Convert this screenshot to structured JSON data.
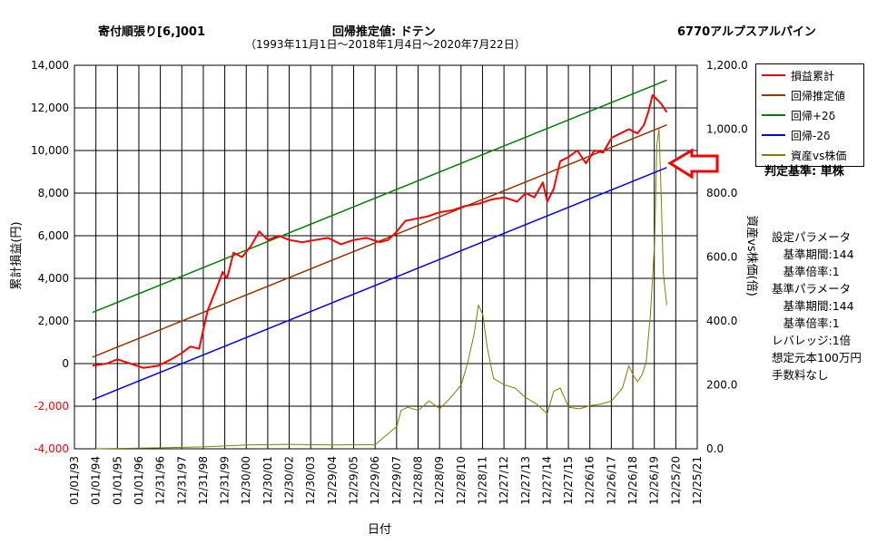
{
  "header": {
    "left_title": "寄付順張り[6,]001",
    "center_title": "回帰推定値: ドテン",
    "center_subtitle": "（1993年11月1日～2018年1月4日～2020年7月22日）",
    "right_title": "6770アルプスアルパイン"
  },
  "judge": "判定基準: 単株",
  "params": [
    "設定パラメータ",
    "　基準期間:144",
    "　基準倍率:1",
    "基準パラメータ",
    "　基準期間:144",
    "　基準倍率:1",
    "レバレッジ:1倍",
    "想定元本100万円",
    "手数料なし"
  ],
  "colors": {
    "cum": "#ff0000",
    "reg": "#993300",
    "plus": "#008000",
    "minus": "#0000ff",
    "ratio": "#808000",
    "arrow": "#ff0000"
  },
  "chart_data": {
    "type": "line",
    "xlabel": "日付",
    "ylabel_left": "累計損益(円)",
    "ylabel_right": "資産vs株価(倍)",
    "ylim_left": [
      -4000,
      14000
    ],
    "ylim_right": [
      0,
      1200
    ],
    "yticks_left": [
      "-4,000",
      "-2,000",
      "0",
      "2,000",
      "4,000",
      "6,000",
      "8,000",
      "10,000",
      "12,000",
      "14,000"
    ],
    "yticks_right": [
      "0.0",
      "200.0",
      "400.0",
      "600.0",
      "800.0",
      "1,000.0",
      "1,200.0"
    ],
    "xticks": [
      "01/01/93",
      "01/01/94",
      "01/01/95",
      "01/01/96",
      "12/31/96",
      "12/31/97",
      "12/31/98",
      "12/31/99",
      "12/30/00",
      "12/30/01",
      "12/30/02",
      "12/30/03",
      "12/29/04",
      "12/29/05",
      "12/29/06",
      "12/29/07",
      "12/28/08",
      "12/28/09",
      "12/28/10",
      "12/28/11",
      "12/27/12",
      "12/27/13",
      "12/27/14",
      "12/27/15",
      "12/26/16",
      "12/26/17",
      "12/26/18",
      "12/26/19",
      "12/25/20",
      "12/25/21"
    ],
    "grid": true,
    "legend_position": "top-right",
    "series": [
      {
        "name": "損益累計",
        "axis": "left",
        "color": "#ff0000",
        "x": [
          1993.84,
          1994.5,
          1995.0,
          1995.6,
          1996.2,
          1996.9,
          1997.5,
          1998.0,
          1998.4,
          1998.8,
          1999.2,
          1999.6,
          1999.9,
          2000.1,
          2000.4,
          2000.8,
          2001.2,
          2001.6,
          2002.0,
          2002.5,
          2003.0,
          2003.6,
          2004.2,
          2004.8,
          2005.4,
          2006.0,
          2006.6,
          2007.2,
          2007.6,
          2008.0,
          2008.4,
          2008.9,
          2009.4,
          2010.0,
          2010.6,
          2011.2,
          2011.8,
          2012.4,
          2013.0,
          2013.6,
          2014.0,
          2014.4,
          2014.8,
          2015.0,
          2015.3,
          2015.6,
          2016.0,
          2016.4,
          2016.8,
          2017.2,
          2017.6,
          2018.0,
          2018.4,
          2018.8,
          2019.2,
          2019.5,
          2019.7,
          2019.9,
          2020.1,
          2020.3,
          2020.56
        ],
        "y": [
          -100,
          0,
          200,
          0,
          -200,
          -100,
          200,
          500,
          800,
          700,
          2500,
          3500,
          4300,
          4000,
          5200,
          5000,
          5500,
          6200,
          5800,
          6000,
          5800,
          5700,
          5800,
          5900,
          5600,
          5800,
          5900,
          5700,
          5800,
          6200,
          6700,
          6800,
          6900,
          7100,
          7200,
          7400,
          7500,
          7700,
          7800,
          7600,
          8000,
          7800,
          8500,
          7600,
          8200,
          9500,
          9700,
          10000,
          9400,
          10000,
          9900,
          10600,
          10800,
          11000,
          10800,
          11200,
          11800,
          12600,
          12400,
          12200,
          11800
        ]
      },
      {
        "name": "回帰推定値",
        "axis": "left",
        "color": "#993300",
        "x": [
          1993.84,
          2020.56
        ],
        "y": [
          300,
          11200
        ]
      },
      {
        "name": "回帰+2δ",
        "axis": "left",
        "color": "#008000",
        "x": [
          1993.84,
          2020.56
        ],
        "y": [
          2400,
          13300
        ]
      },
      {
        "name": "回帰-2δ",
        "axis": "left",
        "color": "#0000ff",
        "x": [
          1993.84,
          2020.56
        ],
        "y": [
          -1700,
          9200
        ]
      },
      {
        "name": "資産vs株価",
        "axis": "right",
        "color": "#808000",
        "x": [
          1994.0,
          1995.0,
          1997.0,
          1999.0,
          2001.0,
          2003.0,
          2005.0,
          2007.0,
          2008.0,
          2008.2,
          2008.5,
          2009.0,
          2009.5,
          2010.0,
          2010.5,
          2011.0,
          2011.3,
          2011.6,
          2011.8,
          2012.0,
          2012.2,
          2012.5,
          2013.0,
          2013.5,
          2014.0,
          2014.5,
          2015.0,
          2015.3,
          2015.6,
          2016.0,
          2016.5,
          2017.0,
          2017.5,
          2018.0,
          2018.5,
          2018.8,
          2019.0,
          2019.2,
          2019.4,
          2019.6,
          2019.8,
          2020.0,
          2020.1,
          2020.2,
          2020.3,
          2020.4,
          2020.56
        ],
        "y": [
          0,
          1,
          3,
          6,
          12,
          14,
          12,
          13,
          70,
          120,
          130,
          120,
          150,
          125,
          160,
          200,
          270,
          360,
          450,
          420,
          320,
          220,
          200,
          190,
          160,
          140,
          110,
          180,
          190,
          130,
          125,
          135,
          140,
          150,
          190,
          260,
          230,
          210,
          230,
          270,
          420,
          650,
          950,
          1000,
          800,
          550,
          450
        ]
      }
    ]
  }
}
